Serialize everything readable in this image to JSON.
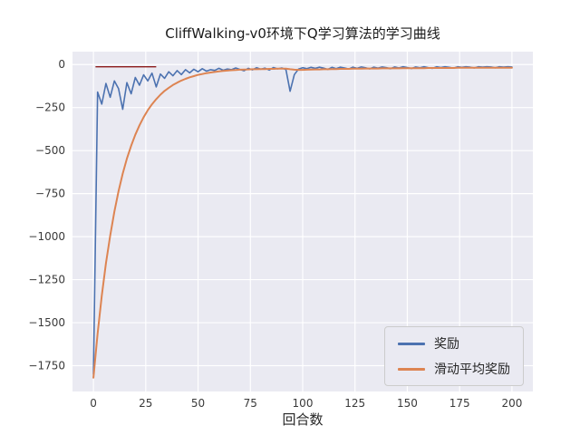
{
  "figure": {
    "title": "CliffWalking-v0环境下Q学习算法的学习曲线",
    "xlabel": "回合数"
  },
  "chart_data": {
    "type": "line",
    "title": "CliffWalking-v0环境下Q学习算法的学习曲线",
    "xlabel": "回合数",
    "ylabel": "",
    "grid": true,
    "legend_position": "lower right",
    "xlim": [
      -10,
      210
    ],
    "ylim": [
      -1900,
      75
    ],
    "x_ticks": [
      0,
      25,
      50,
      75,
      100,
      125,
      150,
      175,
      200
    ],
    "y_ticks": [
      0,
      -250,
      -500,
      -750,
      -1000,
      -1250,
      -1500,
      -1750
    ],
    "x": [
      0,
      2,
      4,
      6,
      8,
      10,
      12,
      14,
      16,
      18,
      20,
      22,
      24,
      26,
      28,
      30,
      32,
      34,
      36,
      38,
      40,
      42,
      44,
      46,
      48,
      50,
      52,
      54,
      56,
      58,
      60,
      62,
      64,
      66,
      68,
      70,
      72,
      74,
      76,
      78,
      80,
      82,
      84,
      86,
      88,
      90,
      92,
      94,
      96,
      98,
      100,
      102,
      104,
      106,
      108,
      110,
      112,
      114,
      116,
      118,
      120,
      122,
      124,
      126,
      128,
      130,
      132,
      134,
      136,
      138,
      140,
      142,
      144,
      146,
      148,
      150,
      152,
      154,
      156,
      158,
      160,
      162,
      164,
      166,
      168,
      170,
      172,
      174,
      176,
      178,
      180,
      182,
      184,
      186,
      188,
      190,
      192,
      194,
      196,
      198,
      200
    ],
    "series": [
      {
        "id": "reward-line",
        "name": "奖励",
        "color": "#4c72b0",
        "width": 1.6,
        "values": [
          -1800,
          -160,
          -230,
          -110,
          -190,
          -95,
          -140,
          -260,
          -105,
          -170,
          -75,
          -120,
          -60,
          -95,
          -50,
          -130,
          -55,
          -80,
          -42,
          -65,
          -35,
          -58,
          -30,
          -48,
          -27,
          -42,
          -24,
          -38,
          -30,
          -34,
          -22,
          -33,
          -26,
          -30,
          -20,
          -28,
          -36,
          -22,
          -31,
          -18,
          -27,
          -21,
          -32,
          -17,
          -25,
          -20,
          -29,
          -155,
          -58,
          -26,
          -18,
          -24,
          -16,
          -22,
          -15,
          -21,
          -28,
          -16,
          -24,
          -15,
          -20,
          -26,
          -15,
          -22,
          -14,
          -19,
          -25,
          -15,
          -21,
          -14,
          -18,
          -24,
          -14,
          -20,
          -13,
          -17,
          -23,
          -14,
          -19,
          -13,
          -18,
          -22,
          -13,
          -17,
          -13,
          -16,
          -21,
          -13,
          -16,
          -13,
          -15,
          -20,
          -13,
          -15,
          -13,
          -14,
          -19,
          -13,
          -15,
          -13,
          -14
        ]
      },
      {
        "id": "moving-average-line",
        "name": "滑动平均奖励",
        "color": "#dd8452",
        "width": 2.0,
        "values": [
          -1820,
          -1564,
          -1344,
          -1155,
          -994,
          -855,
          -736,
          -634,
          -547,
          -472,
          -408,
          -353,
          -306,
          -265,
          -231,
          -201,
          -175,
          -153,
          -135,
          -119,
          -105,
          -93,
          -83,
          -74,
          -67,
          -60,
          -55,
          -50,
          -46,
          -43,
          -40,
          -37,
          -35,
          -33,
          -32,
          -30,
          -29,
          -28,
          -27,
          -27,
          -26,
          -26,
          -25,
          -25,
          -24,
          -24,
          -24,
          -27,
          -30,
          -31,
          -31,
          -30,
          -29,
          -28,
          -28,
          -27,
          -27,
          -26,
          -26,
          -25,
          -25,
          -25,
          -24,
          -24,
          -24,
          -23,
          -23,
          -23,
          -23,
          -22,
          -22,
          -22,
          -22,
          -22,
          -21,
          -21,
          -21,
          -21,
          -21,
          -21,
          -20,
          -20,
          -20,
          -20,
          -20,
          -20,
          -20,
          -19,
          -19,
          -19,
          -19,
          -19,
          -19,
          -19,
          -18,
          -18,
          -18,
          -18,
          -18,
          -18,
          -18
        ]
      }
    ],
    "reference_line": {
      "x": [
        1,
        30
      ],
      "y": -13,
      "color": "#8b1a1a"
    }
  }
}
